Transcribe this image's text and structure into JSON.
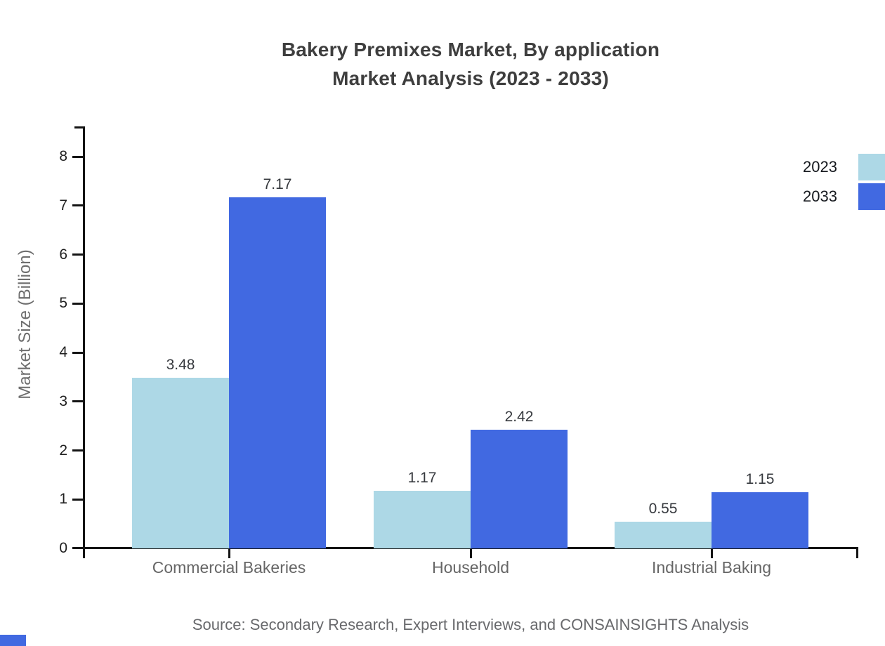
{
  "title": {
    "line1": "Bakery Premixes Market, By application",
    "line2": "Market Analysis (2023 - 2033)"
  },
  "source": "Source: Secondary Research, Expert Interviews, and CONSAINSIGHTS Analysis",
  "chart_data": {
    "type": "bar",
    "title": "Bakery Premixes Market, By application Market Analysis (2023 - 2033)",
    "categories": [
      "Commercial Bakeries",
      "Household",
      "Industrial Baking"
    ],
    "series": [
      {
        "name": "2023",
        "color": "#ADD8E6",
        "values": [
          3.48,
          1.17,
          0.55
        ]
      },
      {
        "name": "2033",
        "color": "#4169E1",
        "values": [
          7.17,
          2.42,
          1.15
        ]
      }
    ],
    "xlabel": "",
    "ylabel": "Market Size (Billion)",
    "ylim": [
      0,
      8
    ],
    "yticks": [
      0,
      1,
      2,
      3,
      4,
      5,
      6,
      7,
      8
    ],
    "grid": false,
    "legend_position": "top-right",
    "value_labels": true,
    "axis_color": "#141414"
  },
  "colors": {
    "series_2023": "#ADD8E6",
    "series_2033": "#4169E1",
    "title_text": "#3e3e3e",
    "muted_text": "#6e6e6e"
  }
}
